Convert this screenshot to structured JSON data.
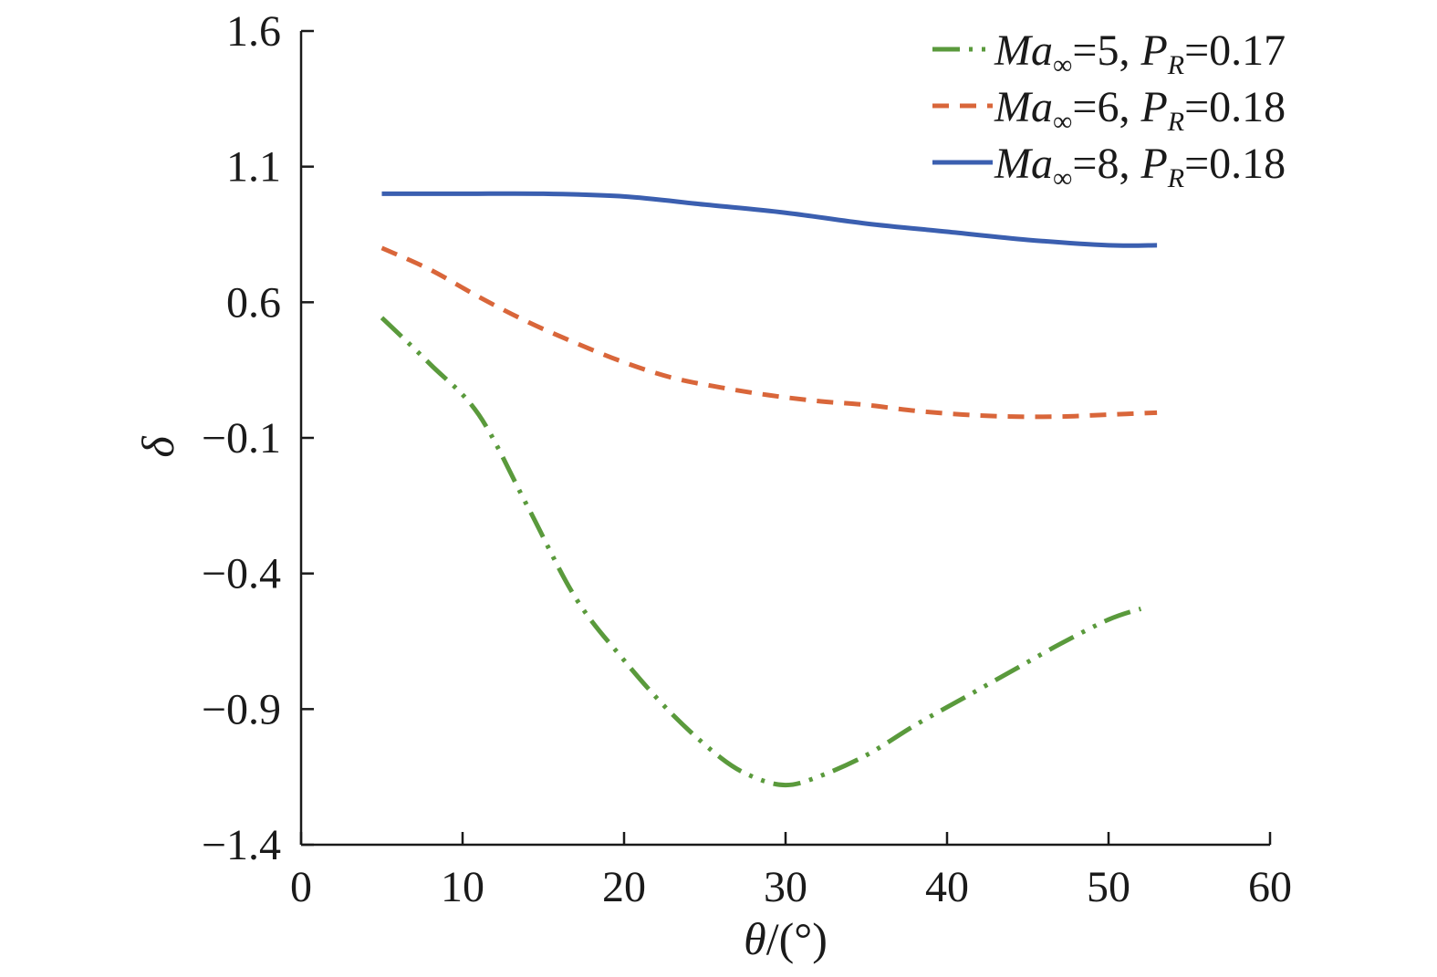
{
  "chart_data": {
    "type": "line",
    "title": "",
    "xlabel": {
      "symbol": "θ",
      "rest": "/(°)"
    },
    "ylabel": "δ",
    "xlim": [
      0,
      60
    ],
    "ylim": [
      -1.4,
      1.6
    ],
    "x_ticks": [
      0,
      10,
      20,
      30,
      40,
      50,
      60
    ],
    "y_ticks": [
      1.6,
      1.1,
      0.6,
      -0.1,
      -0.4,
      -0.9,
      -1.4
    ],
    "y_tick_labels": [
      "1.6",
      "1.1",
      "0.6",
      "−0.1",
      "−0.4",
      "−0.9",
      "−1.4"
    ],
    "x_tick_labels": [
      "0",
      "10",
      "20",
      "30",
      "40",
      "50",
      "60"
    ],
    "grid": false,
    "legend_position": "top-right",
    "series": [
      {
        "name": "Ma∞=5, PR=0.17",
        "legend": {
          "ma": "Ma",
          "sub1": "∞",
          "eq1": "=5, ",
          "p": "P",
          "sub2": "R",
          "eq2": "=0.17"
        },
        "color": "#5a9a3c",
        "style": "dash-dot-dot",
        "x": [
          5,
          8,
          11,
          14,
          17,
          20,
          23,
          26,
          28,
          30,
          32,
          35,
          38,
          41,
          44,
          47,
          50,
          52
        ],
        "y": [
          0.52,
          0.28,
          0.02,
          -0.25,
          -0.49,
          -0.72,
          -0.92,
          -1.08,
          -1.15,
          -1.18,
          -1.15,
          -1.07,
          -0.96,
          -0.86,
          -0.76,
          -0.66,
          -0.57,
          -0.53
        ]
      },
      {
        "name": "Ma∞=6, PR=0.18",
        "legend": {
          "ma": "Ma",
          "sub1": "∞",
          "eq1": "=6, ",
          "p": "P",
          "sub2": "R",
          "eq2": "=0.18"
        },
        "color": "#d9663a",
        "style": "dashed",
        "x": [
          5,
          8,
          11,
          14,
          17,
          20,
          23,
          26,
          29,
          32,
          35,
          38,
          41,
          44,
          47,
          50,
          53
        ],
        "y": [
          0.8,
          0.72,
          0.62,
          0.5,
          0.39,
          0.29,
          0.21,
          0.16,
          0.12,
          0.09,
          0.07,
          0.04,
          0.02,
          0.01,
          0.01,
          0.02,
          0.03
        ]
      },
      {
        "name": "Ma∞=8, PR=0.18",
        "legend": {
          "ma": "Ma",
          "sub1": "∞",
          "eq1": "=8, ",
          "p": "P",
          "sub2": "R",
          "eq2": "=0.18"
        },
        "color": "#3b5fb0",
        "style": "solid",
        "x": [
          5,
          10,
          15,
          20,
          25,
          30,
          35,
          40,
          45,
          50,
          53
        ],
        "y": [
          1.0,
          1.0,
          1.0,
          0.99,
          0.96,
          0.93,
          0.89,
          0.86,
          0.83,
          0.81,
          0.81
        ]
      }
    ]
  }
}
